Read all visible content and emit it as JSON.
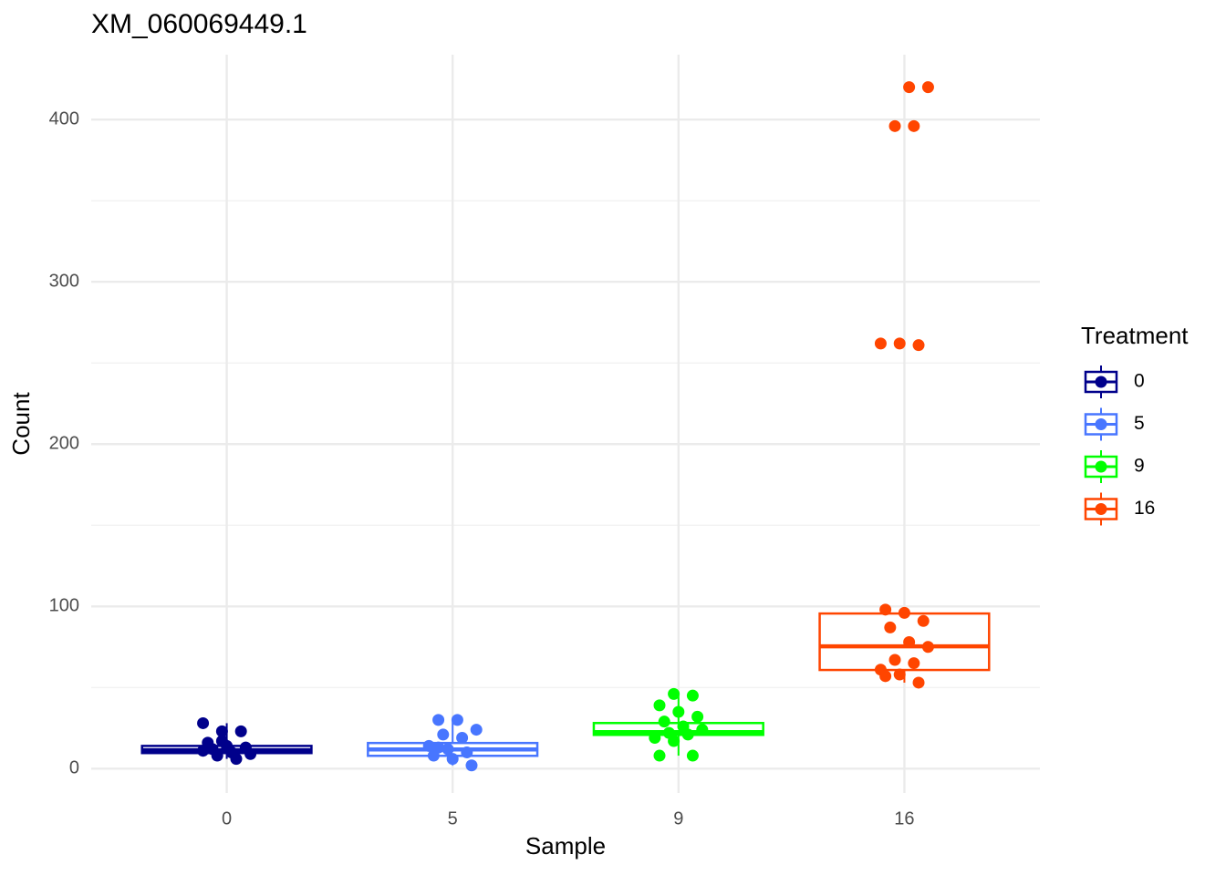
{
  "chart_data": {
    "type": "box",
    "title": "XM_060069449.1",
    "x_label": "Sample",
    "y_label": "Count",
    "categories": [
      "0",
      "5",
      "9",
      "16"
    ],
    "ylim": [
      -15,
      440
    ],
    "yticks": [
      0,
      100,
      200,
      300,
      400
    ],
    "y_minor_ticks": [
      50,
      150,
      250,
      350
    ],
    "grid": true,
    "legend_title": "Treatment",
    "legend": "right",
    "series": [
      {
        "name": "0",
        "color": "#00008b",
        "whisker_low": 6,
        "q1": 9.6,
        "median": 11.3,
        "q3": 14,
        "whisker_high": 28,
        "points": [
          28,
          23,
          23,
          16,
          14,
          13,
          12,
          10,
          9,
          8,
          6,
          11,
          17
        ]
      },
      {
        "name": "5",
        "color": "#4876ff",
        "whisker_low": 2,
        "q1": 7.9,
        "median": 11.8,
        "q3": 15.8,
        "whisker_high": 30,
        "points": [
          30,
          30,
          24,
          21,
          19,
          14,
          12,
          10,
          8,
          6,
          2,
          13
        ]
      },
      {
        "name": "9",
        "color": "#00ff00",
        "whisker_low": 8,
        "q1": 20.8,
        "median": 22.5,
        "q3": 28.1,
        "whisker_high": 46,
        "points": [
          46,
          45,
          39,
          35,
          32,
          29,
          26,
          24,
          22,
          21,
          19,
          17,
          8,
          8
        ]
      },
      {
        "name": "16",
        "color": "#ff4500",
        "whisker_low": 53,
        "q1": 60.8,
        "median": 75.4,
        "q3": 95.6,
        "whisker_high": 98,
        "points": [
          420,
          420,
          396,
          396,
          262,
          262,
          261,
          98,
          96,
          91,
          87,
          78,
          75,
          67,
          65,
          61,
          58,
          53,
          57
        ]
      }
    ]
  }
}
